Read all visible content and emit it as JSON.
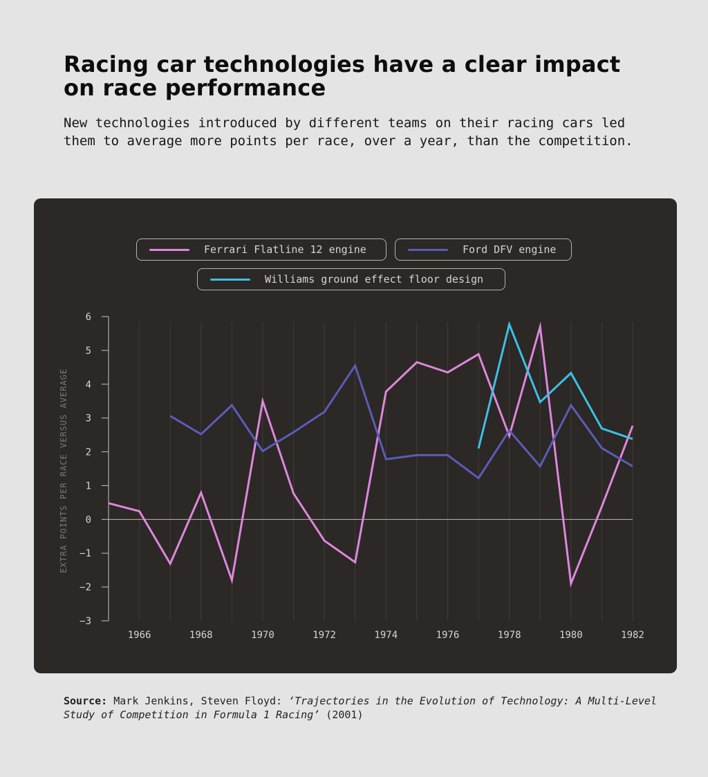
{
  "header": {
    "title": "Racing car technologies have a clear impact on race performance",
    "subtitle": "New technologies introduced by different teams on their racing cars led them to average more points per race, over a year, than the competition."
  },
  "source": {
    "label": "Source:",
    "authors": "Mark Jenkins, Steven Floyd:",
    "work": "‘Trajectories in the Evolution of Technology: A Multi-Level Study of Competition in Formula 1 Racing’",
    "year": "(2001)"
  },
  "colors": {
    "background": "#e4e4e4",
    "panel": "#2b2825",
    "ferrari": "#de87dc",
    "ford": "#5b5cb8",
    "williams": "#3cc0e8"
  },
  "chart_data": {
    "type": "line",
    "title": "",
    "xlabel": "",
    "ylabel": "EXTRA POINTS PER RACE VERSUS AVERAGE",
    "xlim": [
      1965,
      1982
    ],
    "ylim": [
      -3,
      6
    ],
    "yticks": [
      -3,
      -2,
      -1,
      0,
      1,
      2,
      3,
      4,
      5,
      6
    ],
    "xticks": [
      1966,
      1968,
      1970,
      1972,
      1974,
      1976,
      1978,
      1980,
      1982
    ],
    "grid": "vertical",
    "legend_position": "top",
    "series": [
      {
        "name": "Ferrari Flatline 12 engine",
        "color": "#de87dc",
        "x": [
          1965,
          1966,
          1967,
          1968,
          1969,
          1970,
          1971,
          1972,
          1973,
          1974,
          1975,
          1976,
          1977,
          1978,
          1979,
          1980,
          1981,
          1982
        ],
        "y": [
          0.48,
          0.24,
          -1.31,
          0.79,
          -1.8,
          3.5,
          0.77,
          -0.63,
          -1.27,
          3.78,
          4.65,
          4.35,
          4.89,
          2.47,
          5.7,
          -1.9,
          0.38,
          2.77
        ]
      },
      {
        "name": "Ford DFV engine",
        "color": "#5b5cb8",
        "x": [
          1967,
          1968,
          1969,
          1970,
          1971,
          1972,
          1973,
          1974,
          1975,
          1976,
          1977,
          1978,
          1979,
          1980,
          1981,
          1982
        ],
        "y": [
          3.06,
          2.52,
          3.38,
          2.02,
          2.58,
          3.18,
          4.55,
          1.78,
          1.9,
          1.9,
          1.22,
          2.63,
          1.57,
          3.38,
          2.11,
          1.57
        ]
      },
      {
        "name": "Williams ground effect floor design",
        "color": "#3cc0e8",
        "x": [
          1977,
          1978,
          1979,
          1980,
          1981,
          1982
        ],
        "y": [
          2.1,
          5.77,
          3.47,
          4.33,
          2.69,
          2.38
        ]
      }
    ]
  }
}
